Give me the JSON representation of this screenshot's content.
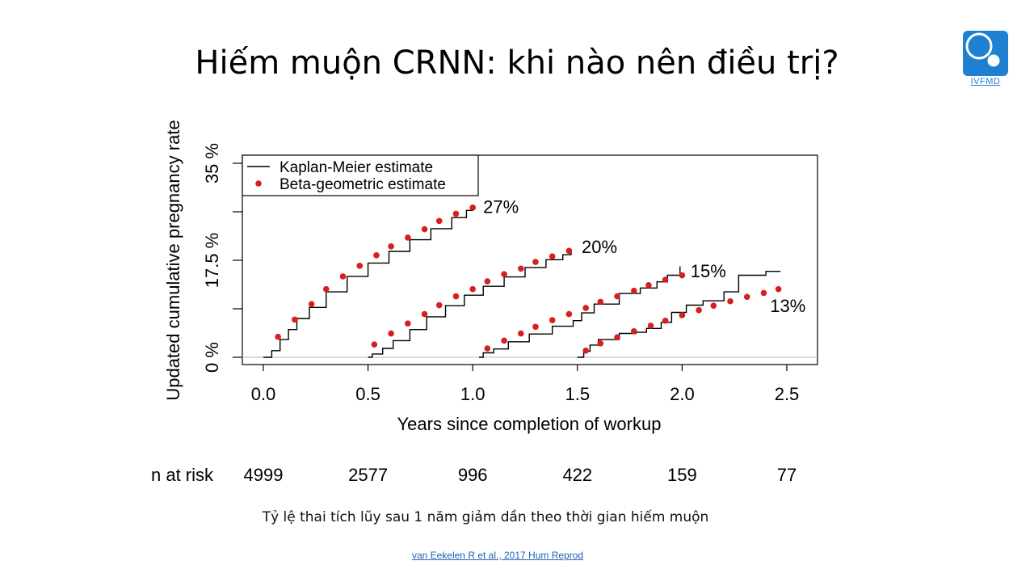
{
  "slide": {
    "title": "Hiếm muộn CRNN: khi nào nên điều trị?",
    "caption": "Tỷ lệ thai tích lũy sau 1 năm giảm dần theo thời gian hiếm muộn",
    "source": "van Eekelen R et al., 2017 Hum Reprod"
  },
  "logo": {
    "text": "IVFMD",
    "color": "#1f7fd0"
  },
  "chart_data": {
    "type": "line",
    "xlabel": "Years since completion of workup",
    "ylabel": "Updated cumulative pregnancy rate",
    "xlim": [
      -0.1,
      2.65
    ],
    "ylim": [
      -2.5,
      35
    ],
    "x_ticks": [
      {
        "value": 0.0,
        "label": "0.0"
      },
      {
        "value": 0.5,
        "label": "0.5"
      },
      {
        "value": 1.0,
        "label": "1.0"
      },
      {
        "value": 1.5,
        "label": "1.5"
      },
      {
        "value": 2.0,
        "label": "2.0"
      },
      {
        "value": 2.5,
        "label": "2.5"
      }
    ],
    "y_ticks": [
      {
        "value": 0,
        "label": "0 %"
      },
      {
        "value": 8.75,
        "label": ""
      },
      {
        "value": 17.5,
        "label": "17.5 %"
      },
      {
        "value": 26.25,
        "label": ""
      },
      {
        "value": 35,
        "label": "35 %"
      }
    ],
    "baseline": 0,
    "grid": false,
    "legend": {
      "position": "top-left",
      "entries": [
        {
          "label": "Kaplan-Meier estimate",
          "style": "line",
          "color": "#000000"
        },
        {
          "label": "Beta-geometric estimate",
          "style": "dot",
          "color": "#d81e1e"
        }
      ]
    },
    "series": [
      {
        "start": 0.0,
        "end_label": "27%",
        "label_at": [
          1.05,
          27.2
        ],
        "km": [
          [
            0.0,
            0.0
          ],
          [
            0.02,
            0.0
          ],
          [
            0.04,
            1.2
          ],
          [
            0.08,
            3.2
          ],
          [
            0.12,
            5.0
          ],
          [
            0.16,
            7.0
          ],
          [
            0.22,
            9.0
          ],
          [
            0.3,
            11.8
          ],
          [
            0.4,
            14.6
          ],
          [
            0.5,
            17.0
          ],
          [
            0.6,
            19.1
          ],
          [
            0.7,
            21.2
          ],
          [
            0.8,
            23.2
          ],
          [
            0.9,
            25.2
          ],
          [
            0.97,
            26.5
          ],
          [
            1.0,
            27.0
          ]
        ],
        "beta": [
          [
            0.07,
            3.7
          ],
          [
            0.15,
            6.8
          ],
          [
            0.23,
            9.6
          ],
          [
            0.3,
            12.3
          ],
          [
            0.38,
            14.6
          ],
          [
            0.46,
            16.5
          ],
          [
            0.54,
            18.4
          ],
          [
            0.61,
            20.0
          ],
          [
            0.69,
            21.6
          ],
          [
            0.77,
            23.1
          ],
          [
            0.84,
            24.6
          ],
          [
            0.92,
            25.9
          ],
          [
            1.0,
            27.0
          ]
        ]
      },
      {
        "start": 0.5,
        "end_label": "20%",
        "label_at": [
          1.52,
          20.0
        ],
        "km": [
          [
            0.5,
            0.0
          ],
          [
            0.52,
            0.6
          ],
          [
            0.57,
            1.6
          ],
          [
            0.62,
            3.0
          ],
          [
            0.7,
            5.0
          ],
          [
            0.78,
            7.3
          ],
          [
            0.87,
            9.3
          ],
          [
            0.96,
            11.2
          ],
          [
            1.05,
            12.8
          ],
          [
            1.15,
            14.5
          ],
          [
            1.25,
            16.2
          ],
          [
            1.35,
            17.6
          ],
          [
            1.43,
            18.5
          ],
          [
            1.47,
            18.9
          ]
        ],
        "beta": [
          [
            0.53,
            2.3
          ],
          [
            0.61,
            4.3
          ],
          [
            0.69,
            6.1
          ],
          [
            0.77,
            7.8
          ],
          [
            0.84,
            9.4
          ],
          [
            0.92,
            11.0
          ],
          [
            1.0,
            12.3
          ],
          [
            1.07,
            13.7
          ],
          [
            1.15,
            15.0
          ],
          [
            1.23,
            16.0
          ],
          [
            1.3,
            17.2
          ],
          [
            1.38,
            18.2
          ],
          [
            1.46,
            19.2
          ]
        ]
      },
      {
        "start": 1.03,
        "end_label": "15%",
        "label_at": [
          2.04,
          15.6
        ],
        "km": [
          [
            1.03,
            0.0
          ],
          [
            1.05,
            0.8
          ],
          [
            1.1,
            1.5
          ],
          [
            1.17,
            2.8
          ],
          [
            1.27,
            4.2
          ],
          [
            1.38,
            5.6
          ],
          [
            1.48,
            6.6
          ],
          [
            1.52,
            8.0
          ],
          [
            1.58,
            9.6
          ],
          [
            1.7,
            11.5
          ],
          [
            1.8,
            12.5
          ],
          [
            1.88,
            13.6
          ],
          [
            1.93,
            14.8
          ],
          [
            1.99,
            16.4
          ]
        ],
        "beta": [
          [
            1.07,
            1.6
          ],
          [
            1.15,
            3.0
          ],
          [
            1.23,
            4.3
          ],
          [
            1.3,
            5.5
          ],
          [
            1.38,
            6.7
          ],
          [
            1.46,
            7.8
          ],
          [
            1.54,
            8.9
          ],
          [
            1.61,
            10.0
          ],
          [
            1.69,
            11.0
          ],
          [
            1.77,
            12.0
          ],
          [
            1.84,
            13.0
          ],
          [
            1.92,
            14.0
          ],
          [
            2.0,
            14.8
          ]
        ]
      },
      {
        "start": 1.5,
        "end_label": "13%",
        "label_at": [
          2.42,
          9.3
        ],
        "km": [
          [
            1.5,
            0.0
          ],
          [
            1.53,
            1.1
          ],
          [
            1.56,
            2.2
          ],
          [
            1.6,
            3.2
          ],
          [
            1.7,
            4.3
          ],
          [
            1.78,
            4.5
          ],
          [
            1.83,
            5.2
          ],
          [
            1.9,
            6.3
          ],
          [
            1.95,
            8.1
          ],
          [
            2.02,
            9.4
          ],
          [
            2.1,
            10.2
          ],
          [
            2.2,
            11.8
          ],
          [
            2.27,
            14.8
          ],
          [
            2.4,
            15.5
          ],
          [
            2.47,
            15.5
          ]
        ],
        "beta": [
          [
            1.54,
            1.2
          ],
          [
            1.61,
            2.5
          ],
          [
            1.69,
            3.6
          ],
          [
            1.77,
            4.7
          ],
          [
            1.85,
            5.7
          ],
          [
            1.92,
            6.6
          ],
          [
            2.0,
            7.6
          ],
          [
            2.08,
            8.5
          ],
          [
            2.15,
            9.3
          ],
          [
            2.23,
            10.1
          ],
          [
            2.31,
            10.9
          ],
          [
            2.39,
            11.6
          ],
          [
            2.46,
            12.3
          ]
        ]
      }
    ],
    "at_risk": {
      "label": "n at risk",
      "values": [
        {
          "x": 0.0,
          "n": "4999"
        },
        {
          "x": 0.5,
          "n": "2577"
        },
        {
          "x": 1.0,
          "n": "996"
        },
        {
          "x": 1.5,
          "n": "422"
        },
        {
          "x": 2.0,
          "n": "159"
        },
        {
          "x": 2.5,
          "n": "77"
        }
      ]
    },
    "colors": {
      "km": "#000000",
      "beta": "#d81e1e",
      "baseline": "#c8c8c8"
    }
  }
}
